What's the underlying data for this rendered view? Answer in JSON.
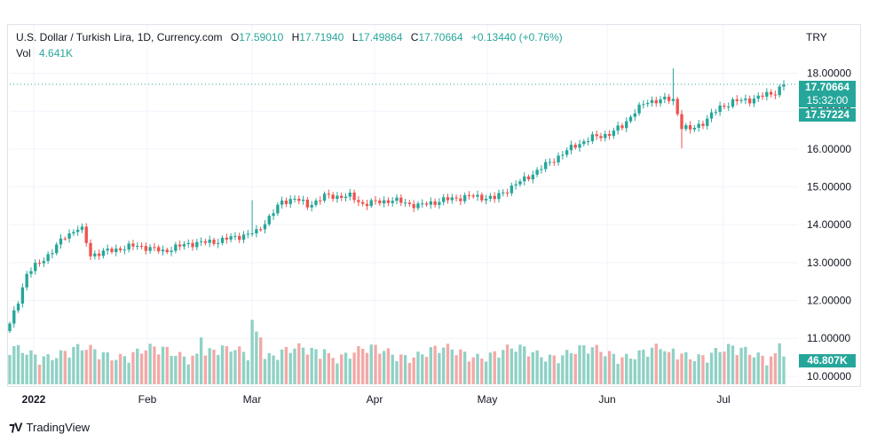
{
  "legend": {
    "title": "U.S. Dollar / Turkish Lira, 1D, Currency.com",
    "open_label": "O",
    "open": "17.59010",
    "high_label": "H",
    "high": "17.71940",
    "low_label": "L",
    "low": "17.49864",
    "close_label": "C",
    "close": "17.70664",
    "change": "+0.13440 (+0.76%)",
    "vol_label": "Vol",
    "vol": "4.641K"
  },
  "currency": "TRY",
  "badges": {
    "last_price": "17.70664",
    "countdown": "15:32:00",
    "second_price": "17.57224",
    "volume": "46.807K"
  },
  "footer": {
    "brand": "TradingView",
    "logo_icon": "tradingview-logo-icon"
  },
  "colors": {
    "up": "#26a69a",
    "down": "#ef5350",
    "vol_up": "#8fd1c5",
    "vol_down": "#f2a9a7",
    "grid": "#f0f3fa",
    "axis_text": "#131722"
  },
  "chart_data": {
    "type": "candlestick",
    "title": "U.S. Dollar / Turkish Lira, 1D, Currency.com",
    "ylabel": "TRY",
    "ylim": [
      9.95,
      18.95
    ],
    "y_ticks": [
      "10.00000",
      "11.00000",
      "12.00000",
      "13.00000",
      "14.00000",
      "15.00000",
      "16.00000",
      "17.00000",
      "18.00000"
    ],
    "x_ticks": [
      "2022",
      "Feb",
      "Mar",
      "Apr",
      "May",
      "Jun",
      "Jul"
    ],
    "grid": true,
    "last_close_line": 17.70664,
    "series": [
      {
        "name": "USD/TRY",
        "keypoints": [
          [
            0,
            11.35
          ],
          [
            2,
            12.0
          ],
          [
            4,
            12.7
          ],
          [
            7,
            13.0
          ],
          [
            10,
            13.3
          ],
          [
            13,
            13.7
          ],
          [
            16,
            13.9
          ],
          [
            17,
            13.85
          ],
          [
            19,
            13.2
          ],
          [
            25,
            13.35
          ],
          [
            30,
            13.45
          ],
          [
            36,
            13.3
          ],
          [
            42,
            13.5
          ],
          [
            48,
            13.55
          ],
          [
            54,
            13.7
          ],
          [
            58,
            13.8
          ],
          [
            61,
            14.2
          ],
          [
            64,
            14.6
          ],
          [
            67,
            14.7
          ],
          [
            70,
            14.5
          ],
          [
            74,
            14.75
          ],
          [
            80,
            14.75
          ],
          [
            83,
            14.55
          ],
          [
            90,
            14.65
          ],
          [
            96,
            14.5
          ],
          [
            102,
            14.65
          ],
          [
            108,
            14.75
          ],
          [
            114,
            14.7
          ],
          [
            118,
            15.0
          ],
          [
            121,
            15.2
          ],
          [
            125,
            15.5
          ],
          [
            129,
            15.8
          ],
          [
            133,
            16.1
          ],
          [
            137,
            16.3
          ],
          [
            141,
            16.4
          ],
          [
            144,
            16.6
          ],
          [
            147,
            17.0
          ],
          [
            150,
            17.25
          ],
          [
            153,
            17.3
          ],
          [
            156,
            17.3
          ],
          [
            158,
            16.6
          ],
          [
            160,
            16.5
          ],
          [
            163,
            16.7
          ],
          [
            167,
            17.1
          ],
          [
            170,
            17.25
          ],
          [
            174,
            17.3
          ],
          [
            177,
            17.4
          ],
          [
            180,
            17.5
          ],
          [
            182,
            17.71
          ]
        ]
      }
    ],
    "volume": {
      "name": "Vol",
      "max_shown": 46.807,
      "unit": "K"
    }
  }
}
